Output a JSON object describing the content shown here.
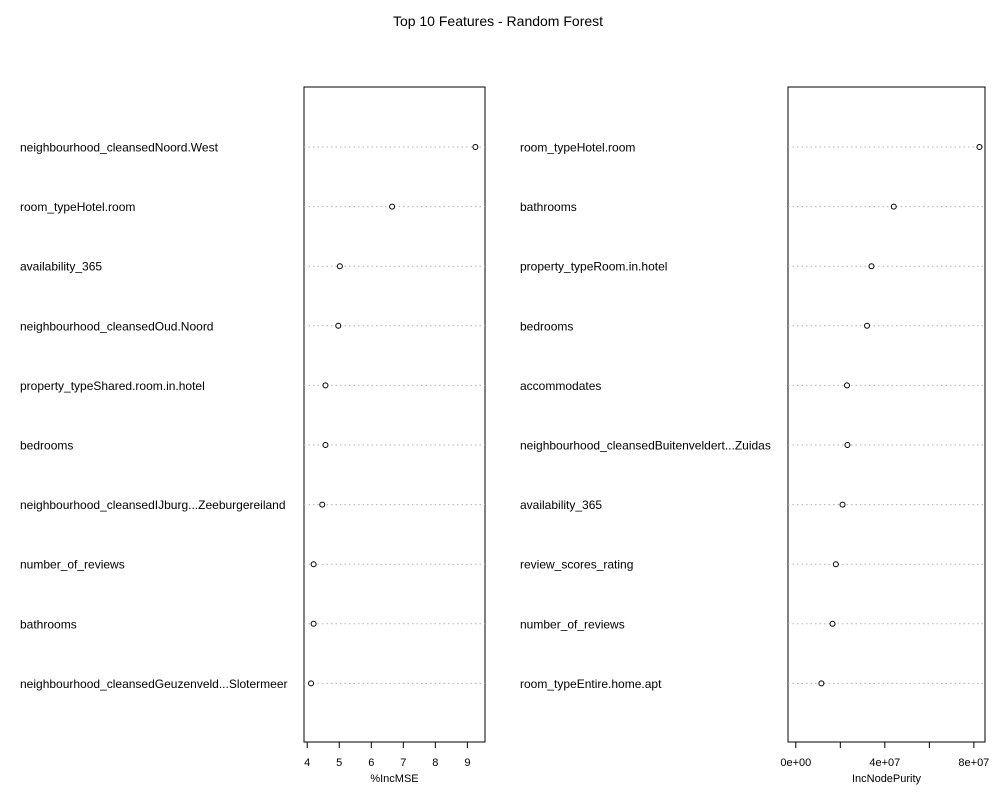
{
  "title": "Top 10 Features - Random Forest",
  "chart_data": [
    {
      "type": "dotchart",
      "xlabel": "%IncMSE",
      "xlim": [
        3.9,
        9.55
      ],
      "xticks": [
        4,
        5,
        6,
        7,
        8,
        9
      ],
      "tick_labels": [
        "4",
        "5",
        "6",
        "7",
        "8",
        "9"
      ],
      "grid": "dotted horizontal",
      "categories": [
        "neighbourhood_cleansedNoord.West",
        "room_typeHotel.room",
        "availability_365",
        "neighbourhood_cleansedOud.Noord",
        "property_typeShared.room.in.hotel",
        "bedrooms",
        "neighbourhood_cleansedIJburg...Zeeburgereiland",
        "number_of_reviews",
        "bathrooms",
        "neighbourhood_cleansedGeuzenveld...Slotermeer"
      ],
      "values": [
        9.25,
        6.65,
        5.02,
        4.97,
        4.57,
        4.57,
        4.47,
        4.2,
        4.2,
        4.12
      ]
    },
    {
      "type": "dotchart",
      "xlabel": "IncNodePurity",
      "xlim": [
        -3500000,
        85000000
      ],
      "xticks": [
        0,
        20000000,
        40000000,
        60000000,
        80000000
      ],
      "tick_labels": [
        "0e+00",
        "",
        "4e+07",
        "",
        "8e+07"
      ],
      "grid": "dotted horizontal",
      "categories": [
        "room_typeHotel.room",
        "bathrooms",
        "property_typeRoom.in.hotel",
        "bedrooms",
        "accommodates",
        "neighbourhood_cleansedBuitenveldert...Zuidas",
        "availability_365",
        "review_scores_rating",
        "number_of_reviews",
        "room_typeEntire.home.apt"
      ],
      "values": [
        82500000,
        44000000,
        34000000,
        32000000,
        23000000,
        23200000,
        21000000,
        18000000,
        16500000,
        11500000
      ]
    }
  ]
}
